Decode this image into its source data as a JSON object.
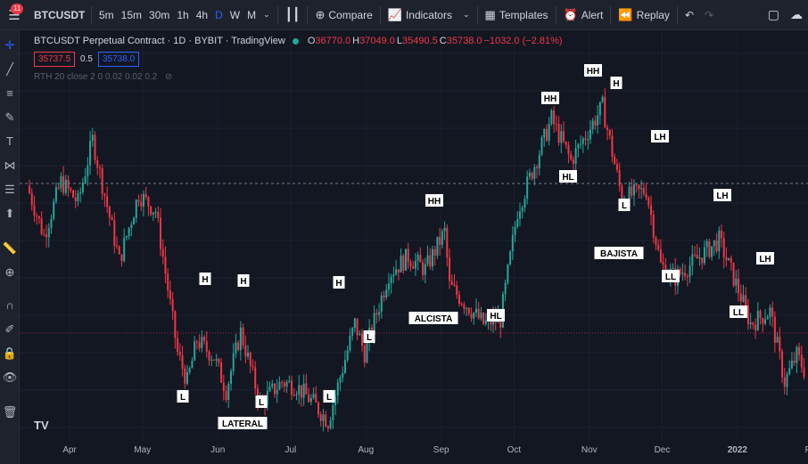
{
  "toolbar": {
    "notifications": "11",
    "symbol": "BTCUSDT",
    "intervals": [
      "5m",
      "15m",
      "30m",
      "1h",
      "4h",
      "D",
      "W",
      "M"
    ],
    "active_interval": "D",
    "compare": "Compare",
    "indicators": "Indicators",
    "templates": "Templates",
    "alert": "Alert",
    "replay": "Replay"
  },
  "legend": {
    "title": "BTCUSDT Perpetual Contract · 1D · BYBIT · TradingView",
    "o_label": "O",
    "o": "36770.0",
    "h_label": "H",
    "h": "37049.0",
    "l_label": "L",
    "l": "35490.5",
    "c_label": "C",
    "c": "35738.0",
    "change": "−1032.0 (−2.81%)",
    "bid": "35737.5",
    "spread": "0.5",
    "ask": "35738.0",
    "indicator": "RTH 20 close 2 0 0.02 0.02 0.2"
  },
  "colors": {
    "bg": "#131722",
    "up": "#26a69a",
    "down": "#f23645",
    "label_bg": "#ffffff",
    "label_text": "#000000"
  },
  "chart_data": {
    "type": "candlestick",
    "months": [
      "Apr",
      "May",
      "Jun",
      "Jul",
      "Aug",
      "Sep",
      "Oct",
      "Nov",
      "Dec",
      "2022",
      "Feb"
    ],
    "ylim": [
      28000,
      70000
    ],
    "trend_labels": [
      {
        "text": "LATERAL",
        "date": "2021-06-15"
      },
      {
        "text": "ALCISTA",
        "date": "2021-09-01"
      },
      {
        "text": "BAJISTA",
        "date": "2021-11-25"
      }
    ],
    "swing_labels": [
      {
        "text": "H",
        "date": "2021-05-27"
      },
      {
        "text": "L",
        "date": "2021-05-24"
      },
      {
        "text": "H",
        "date": "2021-06-14"
      },
      {
        "text": "L",
        "date": "2021-06-22"
      },
      {
        "text": "H",
        "date": "2021-07-31"
      },
      {
        "text": "L",
        "date": "2021-07-21"
      },
      {
        "text": "L",
        "date": "2021-08-04"
      },
      {
        "text": "HH",
        "date": "2021-09-06"
      },
      {
        "text": "HL",
        "date": "2021-09-28"
      },
      {
        "text": "HH",
        "date": "2021-10-20"
      },
      {
        "text": "HL",
        "date": "2021-10-28"
      },
      {
        "text": "HH",
        "date": "2021-11-10"
      },
      {
        "text": "H",
        "date": "2021-11-14"
      },
      {
        "text": "L",
        "date": "2021-11-28"
      },
      {
        "text": "LH",
        "date": "2021-12-01"
      },
      {
        "text": "LL",
        "date": "2021-12-04"
      },
      {
        "text": "LH",
        "date": "2021-12-28"
      },
      {
        "text": "LL",
        "date": "2022-01-10"
      },
      {
        "text": "LH",
        "date": "2022-01-18"
      }
    ]
  }
}
